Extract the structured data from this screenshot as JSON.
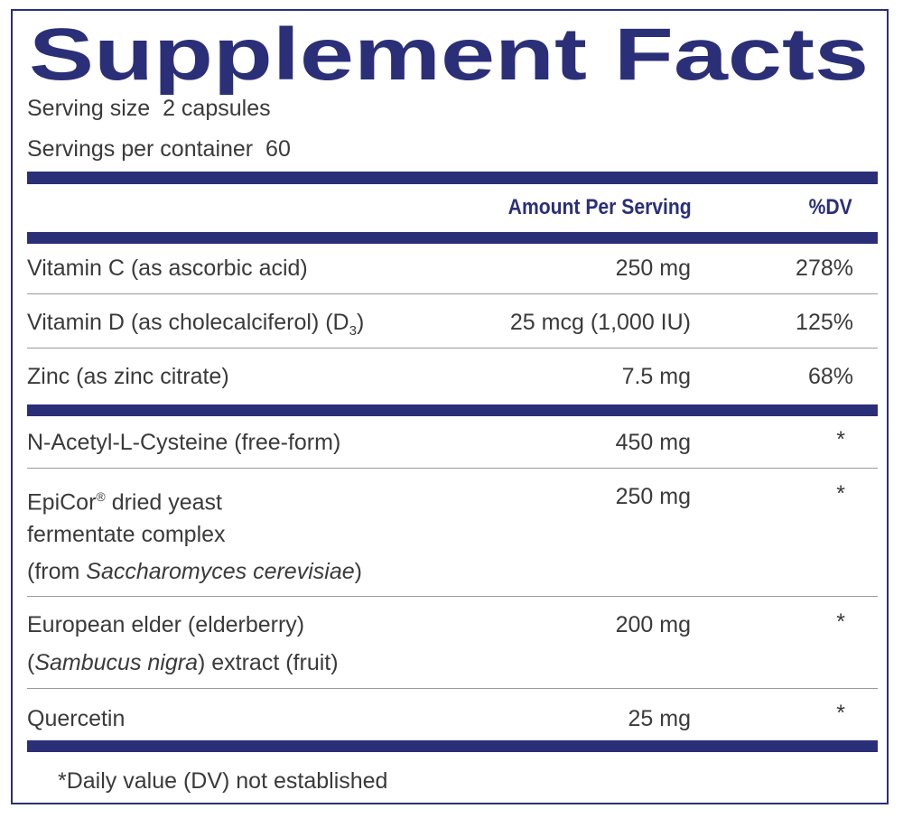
{
  "header": {
    "title": "Supplement Facts",
    "serving_size_label": "Serving size",
    "serving_size": "2 capsules",
    "servings_label": "Servings per container",
    "servings": "60"
  },
  "table": {
    "columns": [
      "Amount Per Serving",
      "%DV"
    ],
    "rows": [
      {
        "name": [
          [
            "Vitamin C (as ascorbic acid)"
          ]
        ],
        "amount": "250 mg",
        "dv": "278%"
      },
      {
        "name": [
          [
            "Vitamin D (as cholecalciferol) (D",
            "3",
            ")"
          ]
        ],
        "amount": "25 mcg (1,000 IU)",
        "dv": "125%"
      },
      {
        "name": [
          [
            "Zinc (as zinc citrate)"
          ]
        ],
        "amount": "7.5 mg",
        "dv": "68%"
      },
      {
        "name": [
          [
            "N-Acetyl-L-Cysteine (free-form)"
          ]
        ],
        "amount": "450 mg",
        "dv": "*"
      },
      {
        "name": [
          [
            "EpiCor",
            "®",
            " dried yeast"
          ],
          [
            "fermentate complex"
          ],
          [
            "(from ",
            "Saccharomyces cerevisiae",
            ")"
          ]
        ],
        "amount": "250 mg",
        "dv": "*"
      },
      {
        "name": [
          [
            "European elder (elderberry)"
          ],
          [
            "(",
            "Sambucus nigra",
            ") extract (fruit)"
          ]
        ],
        "amount": "200 mg",
        "dv": "*"
      },
      {
        "name": [
          [
            "Quercetin"
          ]
        ],
        "amount": "25 mg",
        "dv": "*"
      }
    ]
  },
  "footnote": "*Daily value (DV) not established"
}
